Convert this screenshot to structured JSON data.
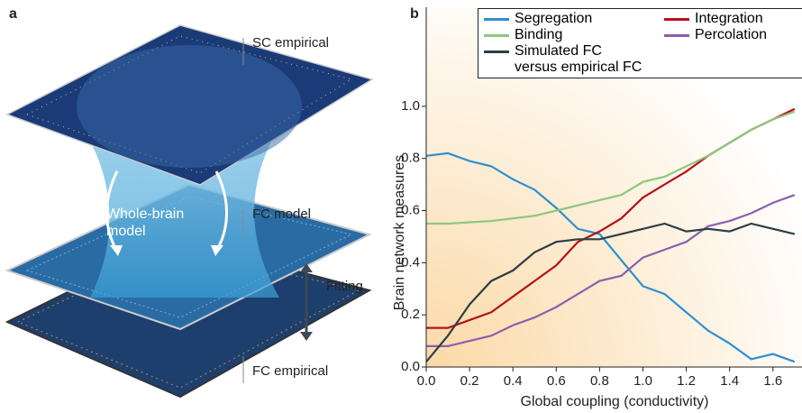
{
  "diagram": {
    "panel_label": "a",
    "layers": [
      "SC empirical",
      "FC model",
      "FC empirical"
    ],
    "model_label": "Whole-brain model",
    "fitting_label": "Fitting"
  },
  "chart_data": {
    "type": "line",
    "panel_label": "b",
    "x_label": "Global coupling (conductivity)",
    "y_label": "Brain network measures",
    "x": [
      0,
      0.1,
      0.2,
      0.3,
      0.4,
      0.5,
      0.6,
      0.7,
      0.8,
      0.9,
      1.0,
      1.1,
      1.2,
      1.3,
      1.4,
      1.5,
      1.6,
      1.7
    ],
    "series": [
      {
        "name": "Segregation",
        "color": "#2d8fd0",
        "values": [
          0.81,
          0.82,
          0.79,
          0.77,
          0.72,
          0.68,
          0.61,
          0.53,
          0.51,
          0.41,
          0.31,
          0.28,
          0.21,
          0.14,
          0.09,
          0.03,
          0.05,
          0.02
        ]
      },
      {
        "name": "Integration",
        "color": "#b5121b",
        "values": [
          0.15,
          0.15,
          0.18,
          0.21,
          0.27,
          0.33,
          0.39,
          0.48,
          0.52,
          0.57,
          0.65,
          0.7,
          0.75,
          0.81,
          0.86,
          0.91,
          0.95,
          0.99
        ]
      },
      {
        "name": "Binding",
        "color": "#8ec77c",
        "values": [
          0.55,
          0.55,
          0.555,
          0.56,
          0.57,
          0.58,
          0.6,
          0.62,
          0.64,
          0.66,
          0.71,
          0.73,
          0.77,
          0.81,
          0.86,
          0.91,
          0.95,
          0.98
        ]
      },
      {
        "name": "Percolation",
        "color": "#8c5fb0",
        "values": [
          0.08,
          0.08,
          0.1,
          0.12,
          0.16,
          0.19,
          0.23,
          0.28,
          0.33,
          0.35,
          0.42,
          0.45,
          0.48,
          0.54,
          0.56,
          0.59,
          0.63,
          0.66
        ]
      },
      {
        "name": "Simulated FC versus empirical FC",
        "color": "#2e3e48",
        "values": [
          0.02,
          0.12,
          0.24,
          0.33,
          0.37,
          0.44,
          0.48,
          0.49,
          0.49,
          0.51,
          0.53,
          0.55,
          0.52,
          0.53,
          0.52,
          0.55,
          0.53,
          0.51
        ]
      }
    ],
    "xlim": [
      0,
      1.73
    ],
    "ylim": [
      0,
      1.38
    ],
    "xticks": [
      {
        "value": 0,
        "label": "0.0"
      },
      {
        "value": 0.2,
        "label": "0.2"
      },
      {
        "value": 0.4,
        "label": "0.4"
      },
      {
        "value": 0.6,
        "label": "0.6"
      },
      {
        "value": 0.8,
        "label": "0.8"
      },
      {
        "value": 1.0,
        "label": "1.0"
      },
      {
        "value": 1.2,
        "label": "1.2"
      },
      {
        "value": 1.4,
        "label": "1.4"
      },
      {
        "value": 1.6,
        "label": "1.6"
      }
    ],
    "yticks": [
      {
        "value": 0,
        "label": "0.0"
      },
      {
        "value": 0.2,
        "label": "0.2"
      },
      {
        "value": 0.4,
        "label": "0.4"
      },
      {
        "value": 0.6,
        "label": "0.6"
      },
      {
        "value": 0.8,
        "label": "0.8"
      },
      {
        "value": 1.0,
        "label": "1.0"
      }
    ]
  }
}
